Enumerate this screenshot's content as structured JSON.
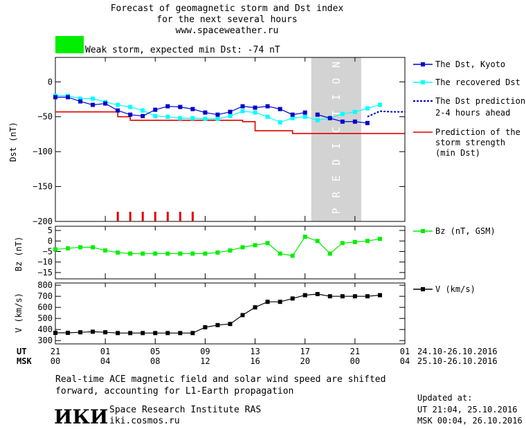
{
  "header": {
    "title_line1": "Forecast of geomagnetic storm and Dst index",
    "title_line2": "for the next several hours",
    "title_line3": "www.spaceweather.ru",
    "storm_label": "Weak storm, expected min Dst: -74 nT",
    "storm_color": "#00ee00"
  },
  "legend": {
    "dst_kyoto": "The Dst, Kyoto",
    "recovered": "The recovered Dst",
    "prediction_l1": "The Dst prediction",
    "prediction_l2": "2-4 hours ahead",
    "strength_l1": "Prediction of the",
    "strength_l2": "storm strength",
    "strength_l3": "(min Dst)",
    "bz": "Bz (nT, GSM)",
    "v": "V (km/s)"
  },
  "prediction_band_label": "PREDICTION",
  "axes": {
    "dst_ylabel": "Dst (nT)",
    "bz_ylabel": "Bz (nT)",
    "v_ylabel": "V (km/s)",
    "ut_label": "UT",
    "msk_label": "MSK",
    "ut_ticks": [
      "21",
      "01",
      "05",
      "09",
      "13",
      "17",
      "21",
      "01"
    ],
    "msk_ticks": [
      "00",
      "04",
      "08",
      "12",
      "16",
      "20",
      "00",
      "04"
    ],
    "ut_range": "24.10-26.10.2016",
    "msk_range": "25.10-26.10.2016"
  },
  "footer": {
    "note_line1": "Real-time ACE magnetic field and solar wind speed are shifted",
    "note_line2": "forward, accounting for L1-Earth propagation",
    "logo_text": "ИКИ",
    "institute": "Space Research Institute RAS",
    "site": "iki.cosmos.ru",
    "updated_label": "Updated at:",
    "updated_ut": "UT   21:04, 25.10.2016",
    "updated_msk": "MSK 00:04, 26.10.2016"
  },
  "colors": {
    "dst": "#0000cc",
    "recovered": "#00ffff",
    "prediction": "#0000cc",
    "strength": "#dd0000",
    "bz": "#00ee00",
    "v": "#000000",
    "band": "#d3d3d3"
  },
  "chart_data": [
    {
      "type": "line",
      "title": "Forecast of geomagnetic storm and Dst index",
      "xlabel": "UT",
      "ylabel": "Dst (nT)",
      "xlim": [
        0,
        28
      ],
      "ylim": [
        -200,
        35
      ],
      "yticks": [
        0,
        -50,
        -100,
        -150,
        -200
      ],
      "prediction_band": [
        20.5,
        24.5
      ],
      "series": [
        {
          "name": "The Dst, Kyoto",
          "x": [
            0,
            1,
            2,
            3,
            4,
            5,
            6,
            7,
            8,
            9,
            10,
            11,
            12,
            13,
            14,
            15,
            16,
            17,
            18,
            19,
            20
          ],
          "y": [
            -22,
            -22,
            -28,
            -33,
            -31,
            -41,
            -47,
            -49,
            -40,
            -35,
            -36,
            -39,
            -44,
            -47,
            -43,
            -35,
            -37,
            -35,
            -39,
            -47,
            -44
          ]
        },
        {
          "name": "The Dst, Kyoto (cont.)",
          "x": [
            21,
            22,
            23,
            24,
            25
          ],
          "y": [
            -47,
            -52,
            -57,
            -57,
            -59
          ]
        },
        {
          "name": "The recovered Dst",
          "x": [
            0,
            1,
            2,
            3,
            4,
            5,
            6,
            7,
            8,
            9,
            10,
            11,
            12,
            13,
            14,
            15,
            16,
            17,
            18,
            19,
            20,
            21,
            22,
            23,
            24,
            25,
            26
          ],
          "y": [
            -20,
            -20,
            -24,
            -24,
            -29,
            -33,
            -36,
            -41,
            -49,
            -50,
            -52,
            -52,
            -53,
            -53,
            -49,
            -42,
            -44,
            -50,
            -58,
            -52,
            -50,
            -55,
            -52,
            -46,
            -43,
            -38,
            -33
          ]
        },
        {
          "name": "The Dst prediction 2-4 hours ahead",
          "x": [
            25,
            26,
            27,
            28
          ],
          "y": [
            -50,
            -42,
            -43,
            -43
          ]
        },
        {
          "name": "Prediction of the storm strength (min Dst)",
          "step": true,
          "x": [
            0,
            4,
            5,
            6,
            15,
            16,
            18,
            19,
            28
          ],
          "y": [
            -43,
            -43,
            -50,
            -55,
            -57,
            -70,
            -70,
            -74,
            -74
          ]
        }
      ],
      "markers": {
        "name": "storm markers",
        "x": [
          5,
          6,
          7,
          8,
          9,
          10,
          11
        ]
      }
    },
    {
      "type": "line",
      "ylabel": "Bz (nT)",
      "ylim": [
        -18,
        7
      ],
      "yticks": [
        5,
        0,
        -5,
        -10,
        -15
      ],
      "series": [
        {
          "name": "Bz (nT, GSM)",
          "x": [
            0,
            1,
            2,
            3,
            4,
            5,
            6,
            7,
            8,
            9,
            10,
            11,
            12,
            13,
            14,
            15,
            16,
            17,
            18,
            19,
            20,
            21,
            22,
            23,
            24,
            25,
            26
          ],
          "y": [
            -4,
            -3.5,
            -3,
            -3,
            -4.5,
            -5.5,
            -6,
            -6,
            -6,
            -6,
            -6,
            -6,
            -6,
            -5.5,
            -4.5,
            -3,
            -2,
            -1,
            -6,
            -7,
            2,
            0,
            -6,
            -1,
            -0.5,
            0,
            1
          ]
        }
      ]
    },
    {
      "type": "line",
      "ylabel": "V (km/s)",
      "ylim": [
        270,
        820
      ],
      "yticks": [
        800,
        700,
        600,
        500,
        400,
        300
      ],
      "series": [
        {
          "name": "V (km/s)",
          "x": [
            0,
            1,
            2,
            3,
            4,
            5,
            6,
            7,
            8,
            9,
            10,
            11,
            12,
            13,
            14,
            15,
            16,
            17,
            18,
            19,
            20,
            21,
            22,
            23,
            24,
            25,
            26
          ],
          "y": [
            370,
            370,
            375,
            380,
            375,
            368,
            368,
            368,
            368,
            368,
            368,
            368,
            420,
            440,
            450,
            530,
            600,
            650,
            650,
            680,
            710,
            720,
            700,
            700,
            700,
            700,
            710
          ]
        }
      ]
    }
  ]
}
